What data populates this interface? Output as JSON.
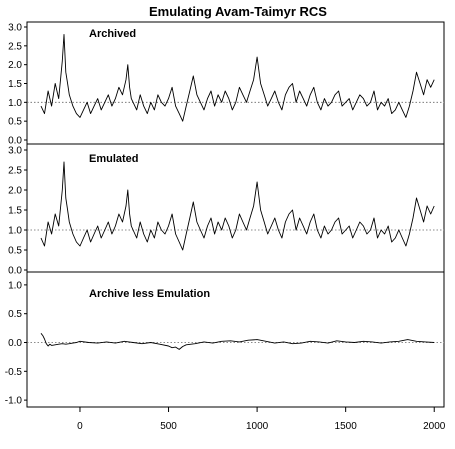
{
  "chart_data": {
    "type": "line",
    "title": "Emulating Avam-Taimyr RCS",
    "x_ticks": [
      0,
      500,
      1000,
      1500,
      2000
    ],
    "xlim": [
      -220,
      2010
    ],
    "panels": [
      {
        "label": "Archived",
        "ylim": [
          0,
          3
        ],
        "y_ticks": [
          "0.0",
          "0.5",
          "1.0",
          "1.5",
          "2.0",
          "2.5",
          "3.0"
        ],
        "y_tick_values": [
          0,
          0.5,
          1,
          1.5,
          2,
          2.5,
          3
        ],
        "reference_y": 1.0,
        "series": {
          "x": [
            -220,
            -200,
            -180,
            -160,
            -140,
            -120,
            -100,
            -90,
            -80,
            -70,
            -60,
            -40,
            -20,
            0,
            20,
            40,
            60,
            80,
            100,
            120,
            140,
            160,
            180,
            200,
            220,
            240,
            260,
            270,
            280,
            290,
            300,
            320,
            340,
            360,
            380,
            400,
            420,
            440,
            460,
            480,
            500,
            520,
            540,
            560,
            580,
            600,
            620,
            640,
            660,
            680,
            700,
            720,
            740,
            760,
            780,
            800,
            820,
            840,
            860,
            880,
            900,
            920,
            940,
            960,
            980,
            1000,
            1020,
            1040,
            1060,
            1080,
            1100,
            1120,
            1140,
            1160,
            1180,
            1200,
            1220,
            1240,
            1260,
            1280,
            1300,
            1320,
            1340,
            1360,
            1380,
            1400,
            1420,
            1440,
            1460,
            1480,
            1500,
            1520,
            1540,
            1560,
            1580,
            1600,
            1620,
            1640,
            1660,
            1680,
            1700,
            1720,
            1740,
            1760,
            1780,
            1800,
            1820,
            1840,
            1860,
            1880,
            1900,
            1920,
            1940,
            1960,
            1980,
            2000
          ],
          "y": [
            0.9,
            0.7,
            1.3,
            0.9,
            1.5,
            1.1,
            2.1,
            2.8,
            1.8,
            1.5,
            1.2,
            0.9,
            0.7,
            0.6,
            0.8,
            1.0,
            0.7,
            0.9,
            1.1,
            0.8,
            1.0,
            1.2,
            0.9,
            1.1,
            1.4,
            1.2,
            1.6,
            2.0,
            1.4,
            1.1,
            1.0,
            0.8,
            1.2,
            0.9,
            0.7,
            1.0,
            0.8,
            1.2,
            1.0,
            0.9,
            1.1,
            1.4,
            0.9,
            0.7,
            0.5,
            0.9,
            1.3,
            1.7,
            1.2,
            1.0,
            0.8,
            1.1,
            1.3,
            0.9,
            1.2,
            1.0,
            1.3,
            1.1,
            0.8,
            1.0,
            1.4,
            1.2,
            1.0,
            1.3,
            1.6,
            2.2,
            1.5,
            1.2,
            0.9,
            1.1,
            1.3,
            1.0,
            0.8,
            1.2,
            1.4,
            1.5,
            1.0,
            1.3,
            1.1,
            0.9,
            1.2,
            1.4,
            1.0,
            0.8,
            1.1,
            0.9,
            1.0,
            1.2,
            1.3,
            0.9,
            1.0,
            1.1,
            0.8,
            1.0,
            1.2,
            1.1,
            0.9,
            1.0,
            1.3,
            0.8,
            1.0,
            0.9,
            1.1,
            0.7,
            0.8,
            1.0,
            0.8,
            0.6,
            0.9,
            1.3,
            1.8,
            1.5,
            1.2,
            1.6,
            1.4,
            1.6
          ]
        }
      },
      {
        "label": "Emulated",
        "ylim": [
          0,
          3
        ],
        "y_ticks": [
          "0.0",
          "0.5",
          "1.0",
          "1.5",
          "2.0",
          "2.5",
          "3.0"
        ],
        "y_tick_values": [
          0,
          0.5,
          1,
          1.5,
          2,
          2.5,
          3
        ],
        "reference_y": 1.0,
        "series": {
          "x": [
            -220,
            -200,
            -180,
            -160,
            -140,
            -120,
            -100,
            -90,
            -80,
            -70,
            -60,
            -40,
            -20,
            0,
            20,
            40,
            60,
            80,
            100,
            120,
            140,
            160,
            180,
            200,
            220,
            240,
            260,
            270,
            280,
            290,
            300,
            320,
            340,
            360,
            380,
            400,
            420,
            440,
            460,
            480,
            500,
            520,
            540,
            560,
            580,
            600,
            620,
            640,
            660,
            680,
            700,
            720,
            740,
            760,
            780,
            800,
            820,
            840,
            860,
            880,
            900,
            920,
            940,
            960,
            980,
            1000,
            1020,
            1040,
            1060,
            1080,
            1100,
            1120,
            1140,
            1160,
            1180,
            1200,
            1220,
            1240,
            1260,
            1280,
            1300,
            1320,
            1340,
            1360,
            1380,
            1400,
            1420,
            1440,
            1460,
            1480,
            1500,
            1520,
            1540,
            1560,
            1580,
            1600,
            1620,
            1640,
            1660,
            1680,
            1700,
            1720,
            1740,
            1760,
            1780,
            1800,
            1820,
            1840,
            1860,
            1880,
            1900,
            1920,
            1940,
            1960,
            1980,
            2000
          ],
          "y": [
            0.8,
            0.6,
            1.2,
            0.9,
            1.4,
            1.1,
            2.0,
            2.7,
            1.8,
            1.5,
            1.2,
            0.9,
            0.7,
            0.6,
            0.8,
            1.0,
            0.7,
            0.9,
            1.1,
            0.8,
            1.0,
            1.2,
            0.9,
            1.1,
            1.4,
            1.2,
            1.6,
            2.0,
            1.4,
            1.1,
            1.0,
            0.8,
            1.2,
            0.9,
            0.7,
            1.0,
            0.8,
            1.2,
            1.0,
            0.9,
            1.1,
            1.4,
            0.9,
            0.7,
            0.5,
            0.9,
            1.3,
            1.7,
            1.2,
            1.0,
            0.8,
            1.1,
            1.3,
            0.9,
            1.2,
            1.0,
            1.3,
            1.1,
            0.8,
            1.0,
            1.4,
            1.2,
            1.0,
            1.3,
            1.6,
            2.2,
            1.5,
            1.2,
            0.9,
            1.1,
            1.3,
            1.0,
            0.8,
            1.2,
            1.4,
            1.5,
            1.0,
            1.3,
            1.1,
            0.9,
            1.2,
            1.4,
            1.0,
            0.8,
            1.1,
            0.9,
            1.0,
            1.2,
            1.3,
            0.9,
            1.0,
            1.1,
            0.8,
            1.0,
            1.2,
            1.1,
            0.9,
            1.0,
            1.3,
            0.8,
            1.0,
            0.9,
            1.1,
            0.7,
            0.8,
            1.0,
            0.8,
            0.6,
            0.9,
            1.3,
            1.8,
            1.5,
            1.2,
            1.6,
            1.4,
            1.6
          ]
        }
      },
      {
        "label": "Archive less Emulation",
        "ylim": [
          -1.05,
          1.05
        ],
        "y_ticks": [
          "-1.0",
          "-0.5",
          "0.0",
          "0.5",
          "1.0"
        ],
        "y_tick_values": [
          -1,
          -0.5,
          0,
          0.5,
          1
        ],
        "reference_y": 0.0,
        "series": {
          "x": [
            -220,
            -210,
            -200,
            -190,
            -180,
            -170,
            -160,
            -140,
            -120,
            -100,
            -80,
            -60,
            -40,
            -20,
            0,
            50,
            100,
            150,
            200,
            250,
            300,
            350,
            400,
            450,
            500,
            520,
            540,
            560,
            580,
            600,
            650,
            700,
            750,
            800,
            850,
            900,
            950,
            1000,
            1050,
            1100,
            1150,
            1200,
            1250,
            1300,
            1350,
            1400,
            1450,
            1500,
            1550,
            1600,
            1650,
            1700,
            1750,
            1800,
            1850,
            1900,
            1950,
            2000
          ],
          "y": [
            0.16,
            0.12,
            0.06,
            -0.02,
            -0.06,
            -0.03,
            -0.05,
            -0.04,
            -0.03,
            -0.02,
            -0.03,
            -0.02,
            -0.01,
            0.0,
            0.02,
            0.0,
            -0.01,
            0.01,
            -0.01,
            0.02,
            0.0,
            -0.02,
            0.0,
            -0.03,
            -0.06,
            -0.09,
            -0.08,
            -0.12,
            -0.07,
            -0.04,
            -0.02,
            0.01,
            -0.01,
            0.02,
            0.03,
            0.01,
            0.04,
            0.05,
            0.02,
            -0.01,
            0.01,
            -0.02,
            -0.01,
            0.02,
            0.01,
            -0.01,
            0.03,
            0.01,
            0.0,
            0.02,
            0.01,
            -0.01,
            0.01,
            0.02,
            0.05,
            0.02,
            0.01,
            0.0
          ]
        }
      }
    ]
  }
}
